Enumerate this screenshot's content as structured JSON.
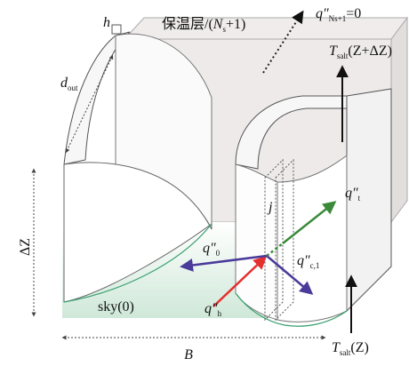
{
  "labels": {
    "insulation": {
      "prefix": "保温层/(",
      "symbol": "N",
      "subscript": "s",
      "suffix": "+1)"
    },
    "q_top": {
      "symbol": "q″",
      "subscript": "Ns+1",
      "suffix": "=0"
    },
    "t_top": {
      "symbol": "T",
      "subscript": "salt",
      "suffix": "(Z+ΔZ)"
    },
    "h": {
      "symbol": "h"
    },
    "d_out": {
      "symbol": "d",
      "subscript": "out"
    },
    "delta_z": {
      "text": "ΔZ"
    },
    "q_t": {
      "symbol": "q″",
      "subscript": "t"
    },
    "j": {
      "symbol": "j"
    },
    "q_0": {
      "symbol": "q″",
      "subscript": "0"
    },
    "q_c1": {
      "symbol": "q″",
      "subscript": "c,1"
    },
    "q_h": {
      "symbol": "q″",
      "subscript": "h"
    },
    "sky": {
      "text": "sky(0)"
    },
    "t_bottom": {
      "symbol": "T",
      "subscript": "salt",
      "suffix": "(Z)"
    },
    "b": {
      "symbol": "B"
    }
  }
}
